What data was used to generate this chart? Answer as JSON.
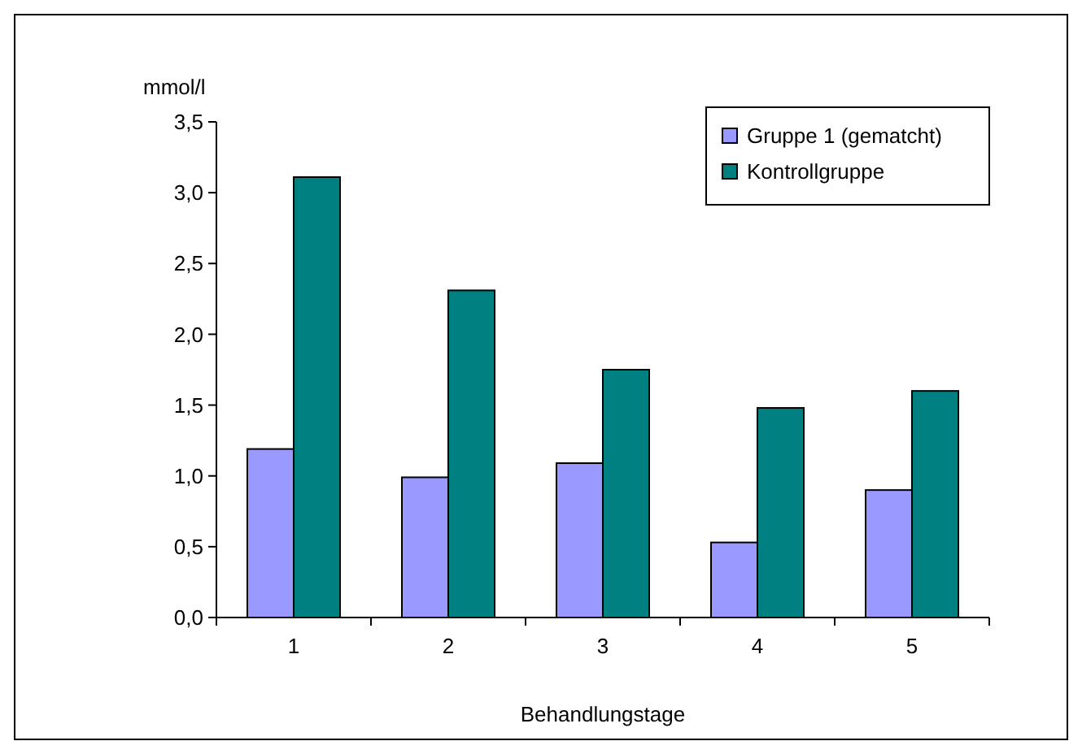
{
  "chart_data": {
    "type": "bar",
    "ylabel": "mmol/l",
    "xlabel": "Behandlungstage",
    "categories": [
      "1",
      "2",
      "3",
      "4",
      "5"
    ],
    "series": [
      {
        "name": "Gruppe 1 (gematcht)",
        "color": "#9999ff",
        "values": [
          1.19,
          0.99,
          1.09,
          0.53,
          0.9
        ]
      },
      {
        "name": "Kontrollgruppe",
        "color": "#008080",
        "values": [
          3.11,
          2.31,
          1.75,
          1.48,
          1.6
        ]
      }
    ],
    "ylim": [
      0,
      3.5
    ],
    "yticks": [
      {
        "value": 0,
        "label": "0,0"
      },
      {
        "value": 0.5,
        "label": "0,5"
      },
      {
        "value": 1,
        "label": "1,0"
      },
      {
        "value": 1.5,
        "label": "1,5"
      },
      {
        "value": 2,
        "label": "2,0"
      },
      {
        "value": 2.5,
        "label": "2,5"
      },
      {
        "value": 3,
        "label": "3,0"
      },
      {
        "value": 3.5,
        "label": "3,5"
      }
    ],
    "legend": "top right",
    "grid": false
  }
}
